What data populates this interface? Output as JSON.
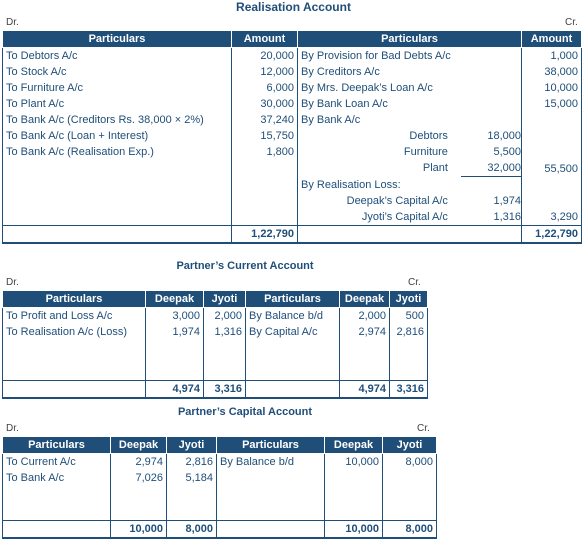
{
  "realisation": {
    "title": "Realisation Account",
    "dr": "Dr.",
    "cr": "Cr.",
    "headers": [
      "Particulars",
      "Amount",
      "Particulars",
      "Amount"
    ],
    "left_rows": [
      {
        "particular": "To Debtors A/c",
        "amount": "20,000"
      },
      {
        "particular": "To Stock A/c",
        "amount": "12,000"
      },
      {
        "particular": "To Furniture A/c",
        "amount": "6,000"
      },
      {
        "particular": "To Plant A/c",
        "amount": "30,000"
      },
      {
        "particular": "To Bank A/c (Creditors Rs. 38,000 × 2%)",
        "amount": "37,240"
      },
      {
        "particular": "To Bank A/c (Loan + Interest)",
        "amount": "15,750"
      },
      {
        "particular": "To Bank A/c (Realisation Exp.)",
        "amount": "1,800"
      }
    ],
    "right_rows": [
      {
        "particular": "By Provision for Bad Debts A/c",
        "amount": "1,000"
      },
      {
        "particular": "By Creditors A/c",
        "amount": "38,000"
      },
      {
        "particular": "By Mrs. Deepak’s Loan A/c",
        "amount": "10,000"
      },
      {
        "particular": "By Bank Loan A/c",
        "amount": "15,000"
      },
      {
        "particular": "By Bank A/c",
        "amount": ""
      }
    ],
    "bank_breakup": [
      {
        "label": "Debtors",
        "value": "18,000"
      },
      {
        "label": "Furniture",
        "value": "5,500"
      },
      {
        "label": "Plant",
        "value": "32,000"
      }
    ],
    "bank_total": "55,500",
    "loss_label": "By Realisation Loss:",
    "loss_breakup": [
      {
        "label": "Deepak’s Capital A/c",
        "value": "1,974"
      },
      {
        "label": "Jyoti’s Capital A/c",
        "value": "1,316"
      }
    ],
    "loss_total": "3,290",
    "total_left": "1,22,790",
    "total_right": "1,22,790"
  },
  "current": {
    "title": "Partner’s Current Account",
    "dr": "Dr.",
    "cr": "Cr.",
    "headers": [
      "Particulars",
      "Deepak",
      "Jyoti",
      "Particulars",
      "Deepak",
      "Jyoti"
    ],
    "rows": [
      {
        "lp": "To Profit and Loss A/c",
        "ld": "3,000",
        "lj": "2,000",
        "rp": "By Balance b/d",
        "rd": "2,000",
        "rj": "500"
      },
      {
        "lp": "To Realisation A/c (Loss)",
        "ld": "1,974",
        "lj": "1,316",
        "rp": "By Capital A/c",
        "rd": "2,974",
        "rj": "2,816"
      }
    ],
    "totals": {
      "ld": "4,974",
      "lj": "3,316",
      "rd": "4,974",
      "rj": "3,316"
    }
  },
  "capital": {
    "title": "Partner’s Capital Account",
    "dr": "Dr.",
    "cr": "Cr.",
    "headers": [
      "Particulars",
      "Deepak",
      "Jyoti",
      "Particulars",
      "Deepak",
      "Jyoti"
    ],
    "rows": [
      {
        "lp": "To Current A/c",
        "ld": "2,974",
        "lj": "2,816",
        "rp": "By Balance b/d",
        "rd": "10,000",
        "rj": "8,000"
      },
      {
        "lp": "To Bank A/c",
        "ld": "7,026",
        "lj": "5,184",
        "rp": "",
        "rd": "",
        "rj": ""
      }
    ],
    "totals": {
      "ld": "10,000",
      "lj": "8,000",
      "rd": "10,000",
      "rj": "8,000"
    }
  },
  "colors": {
    "header_bg": "#1f4e79",
    "text": "#1f4e79"
  }
}
